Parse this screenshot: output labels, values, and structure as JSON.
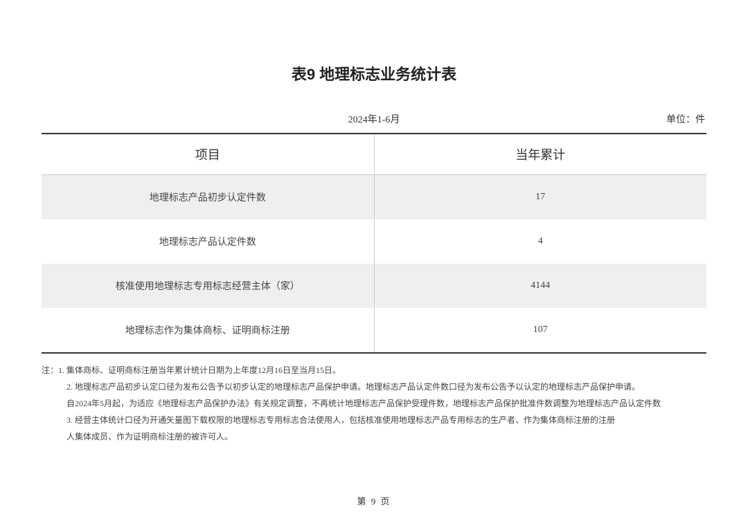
{
  "title": "表9 地理标志业务统计表",
  "period": "2024年1-6月",
  "unit": "单位：件",
  "table": {
    "headers": {
      "item": "项目",
      "value": "当年累计"
    },
    "rows": [
      {
        "item": "地理标志产品初步认定件数",
        "value": "17",
        "shaded": true
      },
      {
        "item": "地理标志产品认定件数",
        "value": "4",
        "shaded": false
      },
      {
        "item": "核准使用地理标志专用标志经营主体（家）",
        "value": "4144",
        "shaded": true
      },
      {
        "item": "地理标志作为集体商标、证明商标注册",
        "value": "107",
        "shaded": false
      }
    ]
  },
  "notes": {
    "lines": [
      {
        "text": "注：1. 集体商标、证明商标注册当年累计统计日期为上年度12月16日至当月15日。",
        "indent": false
      },
      {
        "text": "2. 地理标志产品初步认定口径为发布公告予以初步认定的地理标志产品保护申请。地理标志产品认定件数口径为发布公告予以认定的地理标志产品保护申请。",
        "indent": true
      },
      {
        "text": "自2024年5月起，为适应《地理标志产品保护办法》有关规定调整，不再统计地理标志产品保护受理件数，地理标志产品保护批准件数调整为地理标志产品认定件数",
        "indent": true
      },
      {
        "text": "3. 经营主体统计口径为开通矢量图下载权限的地理标志专用标志合法使用人，包括核准使用地理标志产品专用标志的生产者、作为集体商标注册的注册",
        "indent": true
      },
      {
        "text": "人集体成员、作为证明商标注册的被许可人。",
        "indent": true
      }
    ]
  },
  "footer": "第 9 页",
  "styling": {
    "background_color": "#ffffff",
    "text_color": "#333333",
    "title_fontsize": 22,
    "header_fontsize": 18,
    "cell_fontsize": 14,
    "notes_fontsize": 12,
    "shaded_row_color": "#efefef",
    "border_color_strong": "#333333",
    "border_color_light": "#cccccc",
    "font_family_title": "SimHei",
    "font_family_body": "SimSun"
  }
}
